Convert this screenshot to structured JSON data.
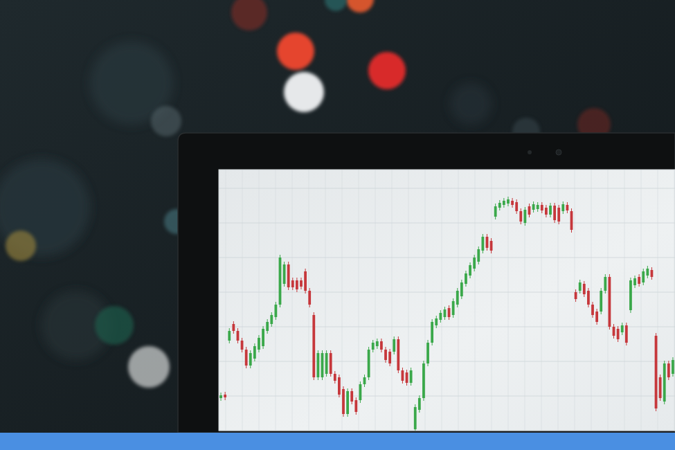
{
  "chart_data": {
    "type": "candlestick",
    "ylim": [
      0,
      377
    ],
    "yticks": [
      0,
      50,
      100,
      150,
      200,
      250,
      300,
      350
    ],
    "grid": true,
    "tick_labels": false,
    "colors": [
      "#3aa84a",
      "#c6373b"
    ],
    "open": [
      47,
      52,
      130,
      154,
      144,
      130,
      117,
      94,
      104,
      117,
      122,
      144,
      154,
      164,
      182,
      212,
      240,
      217,
      217,
      217,
      230,
      202,
      167,
      77,
      77,
      82,
      112,
      82,
      77,
      60,
      24,
      57,
      44,
      44,
      67,
      77,
      117,
      122,
      129,
      117,
      114,
      114,
      132,
      87,
      84,
      69,
      2,
      30,
      47,
      97,
      127,
      152,
      160,
      164,
      177,
      167,
      182,
      194,
      212,
      224,
      234,
      244,
      260,
      280,
      274,
      309,
      322,
      326,
      328,
      332,
      330,
      317,
      300,
      324,
      319,
      320,
      326,
      322,
      312,
      325,
      322,
      317,
      326,
      317,
      200,
      202,
      212,
      202,
      182,
      172,
      172,
      202,
      222,
      150,
      147,
      142,
      152,
      174,
      210,
      222,
      214,
      224,
      232,
      137,
      77,
      42,
      97,
      82
    ],
    "high": [
      55,
      56,
      148,
      158,
      148,
      134,
      121,
      116,
      126,
      138,
      151,
      161,
      171,
      186,
      254,
      244,
      244,
      221,
      221,
      221,
      234,
      206,
      171,
      116,
      116,
      116,
      116,
      86,
      81,
      64,
      61,
      61,
      48,
      71,
      81,
      121,
      131,
      133,
      133,
      121,
      118,
      136,
      136,
      91,
      88,
      91,
      38,
      51,
      101,
      131,
      161,
      166,
      174,
      179,
      181,
      191,
      206,
      218,
      231,
      243,
      254,
      266,
      284,
      284,
      278,
      328,
      333,
      336,
      338,
      336,
      334,
      321,
      323,
      328,
      331,
      330,
      330,
      326,
      329,
      329,
      326,
      331,
      330,
      321,
      204,
      218,
      216,
      206,
      186,
      176,
      206,
      226,
      226,
      154,
      151,
      156,
      156,
      221,
      224,
      226,
      234,
      238,
      236,
      141,
      81,
      101,
      101,
      106
    ],
    "low": [
      43,
      44,
      126,
      140,
      126,
      113,
      90,
      90,
      100,
      113,
      118,
      140,
      150,
      160,
      178,
      208,
      203,
      203,
      200,
      204,
      198,
      178,
      73,
      73,
      73,
      78,
      78,
      68,
      48,
      20,
      20,
      38,
      23,
      40,
      63,
      73,
      113,
      118,
      113,
      98,
      93,
      110,
      83,
      68,
      65,
      65,
      0,
      26,
      43,
      93,
      123,
      148,
      156,
      160,
      160,
      163,
      178,
      190,
      208,
      220,
      230,
      240,
      256,
      260,
      256,
      305,
      318,
      322,
      324,
      322,
      313,
      298,
      296,
      308,
      315,
      316,
      314,
      308,
      308,
      300,
      298,
      313,
      314,
      286,
      186,
      198,
      193,
      178,
      163,
      153,
      168,
      198,
      146,
      133,
      128,
      138,
      123,
      170,
      206,
      208,
      210,
      220,
      218,
      28,
      43,
      38,
      73,
      78
    ],
    "close": [
      51,
      48,
      144,
      144,
      130,
      117,
      94,
      112,
      122,
      134,
      147,
      157,
      167,
      182,
      250,
      240,
      207,
      207,
      204,
      208,
      202,
      182,
      77,
      112,
      112,
      112,
      82,
      72,
      52,
      24,
      57,
      42,
      27,
      67,
      77,
      117,
      127,
      129,
      117,
      102,
      97,
      132,
      87,
      72,
      69,
      87,
      34,
      47,
      97,
      127,
      157,
      162,
      170,
      175,
      164,
      187,
      202,
      214,
      227,
      239,
      250,
      262,
      280,
      264,
      260,
      324,
      329,
      332,
      334,
      326,
      317,
      302,
      319,
      312,
      327,
      326,
      318,
      312,
      325,
      304,
      302,
      327,
      318,
      290,
      190,
      214,
      197,
      182,
      167,
      157,
      202,
      222,
      150,
      137,
      132,
      152,
      127,
      217,
      220,
      212,
      230,
      234,
      222,
      32,
      47,
      97,
      77,
      102
    ]
  }
}
